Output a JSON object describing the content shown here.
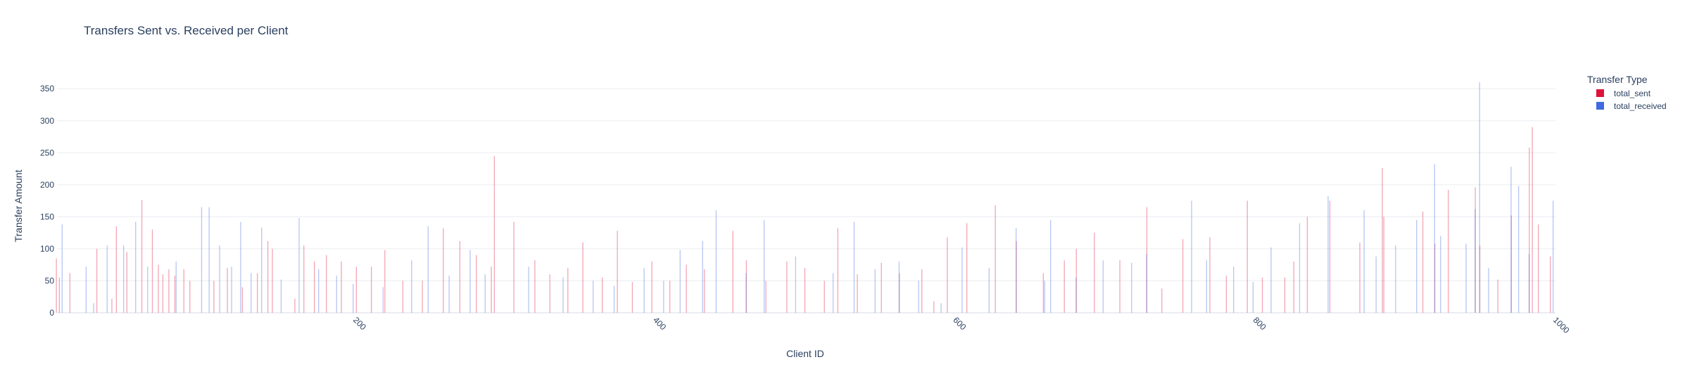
{
  "chart_data": {
    "type": "bar",
    "title": "Transfers Sent vs. Received per Client",
    "xlabel": "Client ID",
    "ylabel": "Transfer Amount",
    "xlim": [
      1,
      1000
    ],
    "ylim": [
      0,
      370
    ],
    "x_ticks": [
      200,
      400,
      600,
      800,
      1000
    ],
    "y_ticks": [
      0,
      50,
      100,
      150,
      200,
      250,
      300,
      350
    ],
    "grid": true,
    "legend": {
      "title": "Transfer Type",
      "position": "top-right"
    },
    "series": [
      {
        "name": "total_sent",
        "color": "#DC143C",
        "points": [
          [
            1,
            85
          ],
          [
            3,
            55
          ],
          [
            10,
            62
          ],
          [
            28,
            100
          ],
          [
            38,
            22
          ],
          [
            41,
            135
          ],
          [
            48,
            95
          ],
          [
            58,
            176
          ],
          [
            65,
            130
          ],
          [
            69,
            75
          ],
          [
            72,
            60
          ],
          [
            76,
            68
          ],
          [
            80,
            58
          ],
          [
            86,
            68
          ],
          [
            90,
            50
          ],
          [
            106,
            50
          ],
          [
            115,
            70
          ],
          [
            125,
            40
          ],
          [
            135,
            62
          ],
          [
            142,
            112
          ],
          [
            145,
            100
          ],
          [
            160,
            22
          ],
          [
            166,
            105
          ],
          [
            173,
            80
          ],
          [
            181,
            90
          ],
          [
            191,
            80
          ],
          [
            201,
            72
          ],
          [
            211,
            72
          ],
          [
            220,
            98
          ],
          [
            232,
            50
          ],
          [
            245,
            50
          ],
          [
            259,
            132
          ],
          [
            270,
            112
          ],
          [
            281,
            90
          ],
          [
            291,
            72
          ],
          [
            293,
            245
          ],
          [
            306,
            142
          ],
          [
            320,
            82
          ],
          [
            330,
            60
          ],
          [
            342,
            70
          ],
          [
            352,
            110
          ],
          [
            365,
            55
          ],
          [
            375,
            128
          ],
          [
            385,
            48
          ],
          [
            398,
            80
          ],
          [
            410,
            50
          ],
          [
            421,
            75
          ],
          [
            433,
            68
          ],
          [
            452,
            128
          ],
          [
            461,
            82
          ],
          [
            474,
            50
          ],
          [
            488,
            80
          ],
          [
            500,
            70
          ],
          [
            513,
            50
          ],
          [
            522,
            132
          ],
          [
            535,
            60
          ],
          [
            551,
            78
          ],
          [
            563,
            62
          ],
          [
            578,
            68
          ],
          [
            586,
            18
          ],
          [
            595,
            118
          ],
          [
            608,
            140
          ],
          [
            627,
            168
          ],
          [
            641,
            112
          ],
          [
            659,
            62
          ],
          [
            673,
            82
          ],
          [
            681,
            100
          ],
          [
            693,
            125
          ],
          [
            710,
            82
          ],
          [
            728,
            165
          ],
          [
            738,
            38
          ],
          [
            752,
            115
          ],
          [
            770,
            118
          ],
          [
            781,
            58
          ],
          [
            795,
            175
          ],
          [
            805,
            55
          ],
          [
            820,
            55
          ],
          [
            826,
            80
          ],
          [
            835,
            150
          ],
          [
            850,
            175
          ],
          [
            870,
            110
          ],
          [
            886,
            150
          ],
          [
            885,
            226
          ],
          [
            912,
            158
          ],
          [
            920,
            108
          ],
          [
            929,
            192
          ],
          [
            947,
            196
          ],
          [
            950,
            105
          ],
          [
            962,
            52
          ],
          [
            971,
            152
          ],
          [
            983,
            258
          ],
          [
            985,
            290
          ],
          [
            989,
            138
          ],
          [
            997,
            88
          ]
        ]
      },
      {
        "name": "total_received",
        "color": "#4169E1",
        "points": [
          [
            4,
            138
          ],
          [
            20,
            72
          ],
          [
            25,
            15
          ],
          [
            34,
            105
          ],
          [
            45,
            105
          ],
          [
            53,
            142
          ],
          [
            61,
            72
          ],
          [
            80,
            80
          ],
          [
            97,
            165
          ],
          [
            102,
            165
          ],
          [
            109,
            105
          ],
          [
            117,
            72
          ],
          [
            123,
            142
          ],
          [
            130,
            62
          ],
          [
            137,
            133
          ],
          [
            150,
            52
          ],
          [
            162,
            148
          ],
          [
            175,
            68
          ],
          [
            187,
            58
          ],
          [
            198,
            45
          ],
          [
            218,
            40
          ],
          [
            237,
            82
          ],
          [
            248,
            135
          ],
          [
            262,
            58
          ],
          [
            276,
            98
          ],
          [
            286,
            60
          ],
          [
            315,
            72
          ],
          [
            338,
            55
          ],
          [
            358,
            50
          ],
          [
            372,
            42
          ],
          [
            392,
            70
          ],
          [
            405,
            50
          ],
          [
            416,
            98
          ],
          [
            431,
            112
          ],
          [
            440,
            160
          ],
          [
            460,
            62
          ],
          [
            472,
            145
          ],
          [
            493,
            88
          ],
          [
            518,
            62
          ],
          [
            532,
            142
          ],
          [
            546,
            68
          ],
          [
            562,
            80
          ],
          [
            575,
            50
          ],
          [
            590,
            15
          ],
          [
            604,
            102
          ],
          [
            622,
            70
          ],
          [
            640,
            132
          ],
          [
            659,
            50
          ],
          [
            663,
            145
          ],
          [
            680,
            55
          ],
          [
            698,
            82
          ],
          [
            717,
            78
          ],
          [
            727,
            92
          ],
          [
            757,
            175
          ],
          [
            767,
            82
          ],
          [
            785,
            72
          ],
          [
            798,
            48
          ],
          [
            810,
            102
          ],
          [
            829,
            140
          ],
          [
            848,
            182
          ],
          [
            872,
            160
          ],
          [
            880,
            88
          ],
          [
            893,
            105
          ],
          [
            907,
            145
          ],
          [
            919,
            232
          ],
          [
            923,
            120
          ],
          [
            940,
            108
          ],
          [
            946,
            162
          ],
          [
            949,
            360
          ],
          [
            955,
            70
          ],
          [
            970,
            228
          ],
          [
            975,
            198
          ],
          [
            982,
            92
          ],
          [
            998,
            175
          ]
        ]
      }
    ]
  }
}
